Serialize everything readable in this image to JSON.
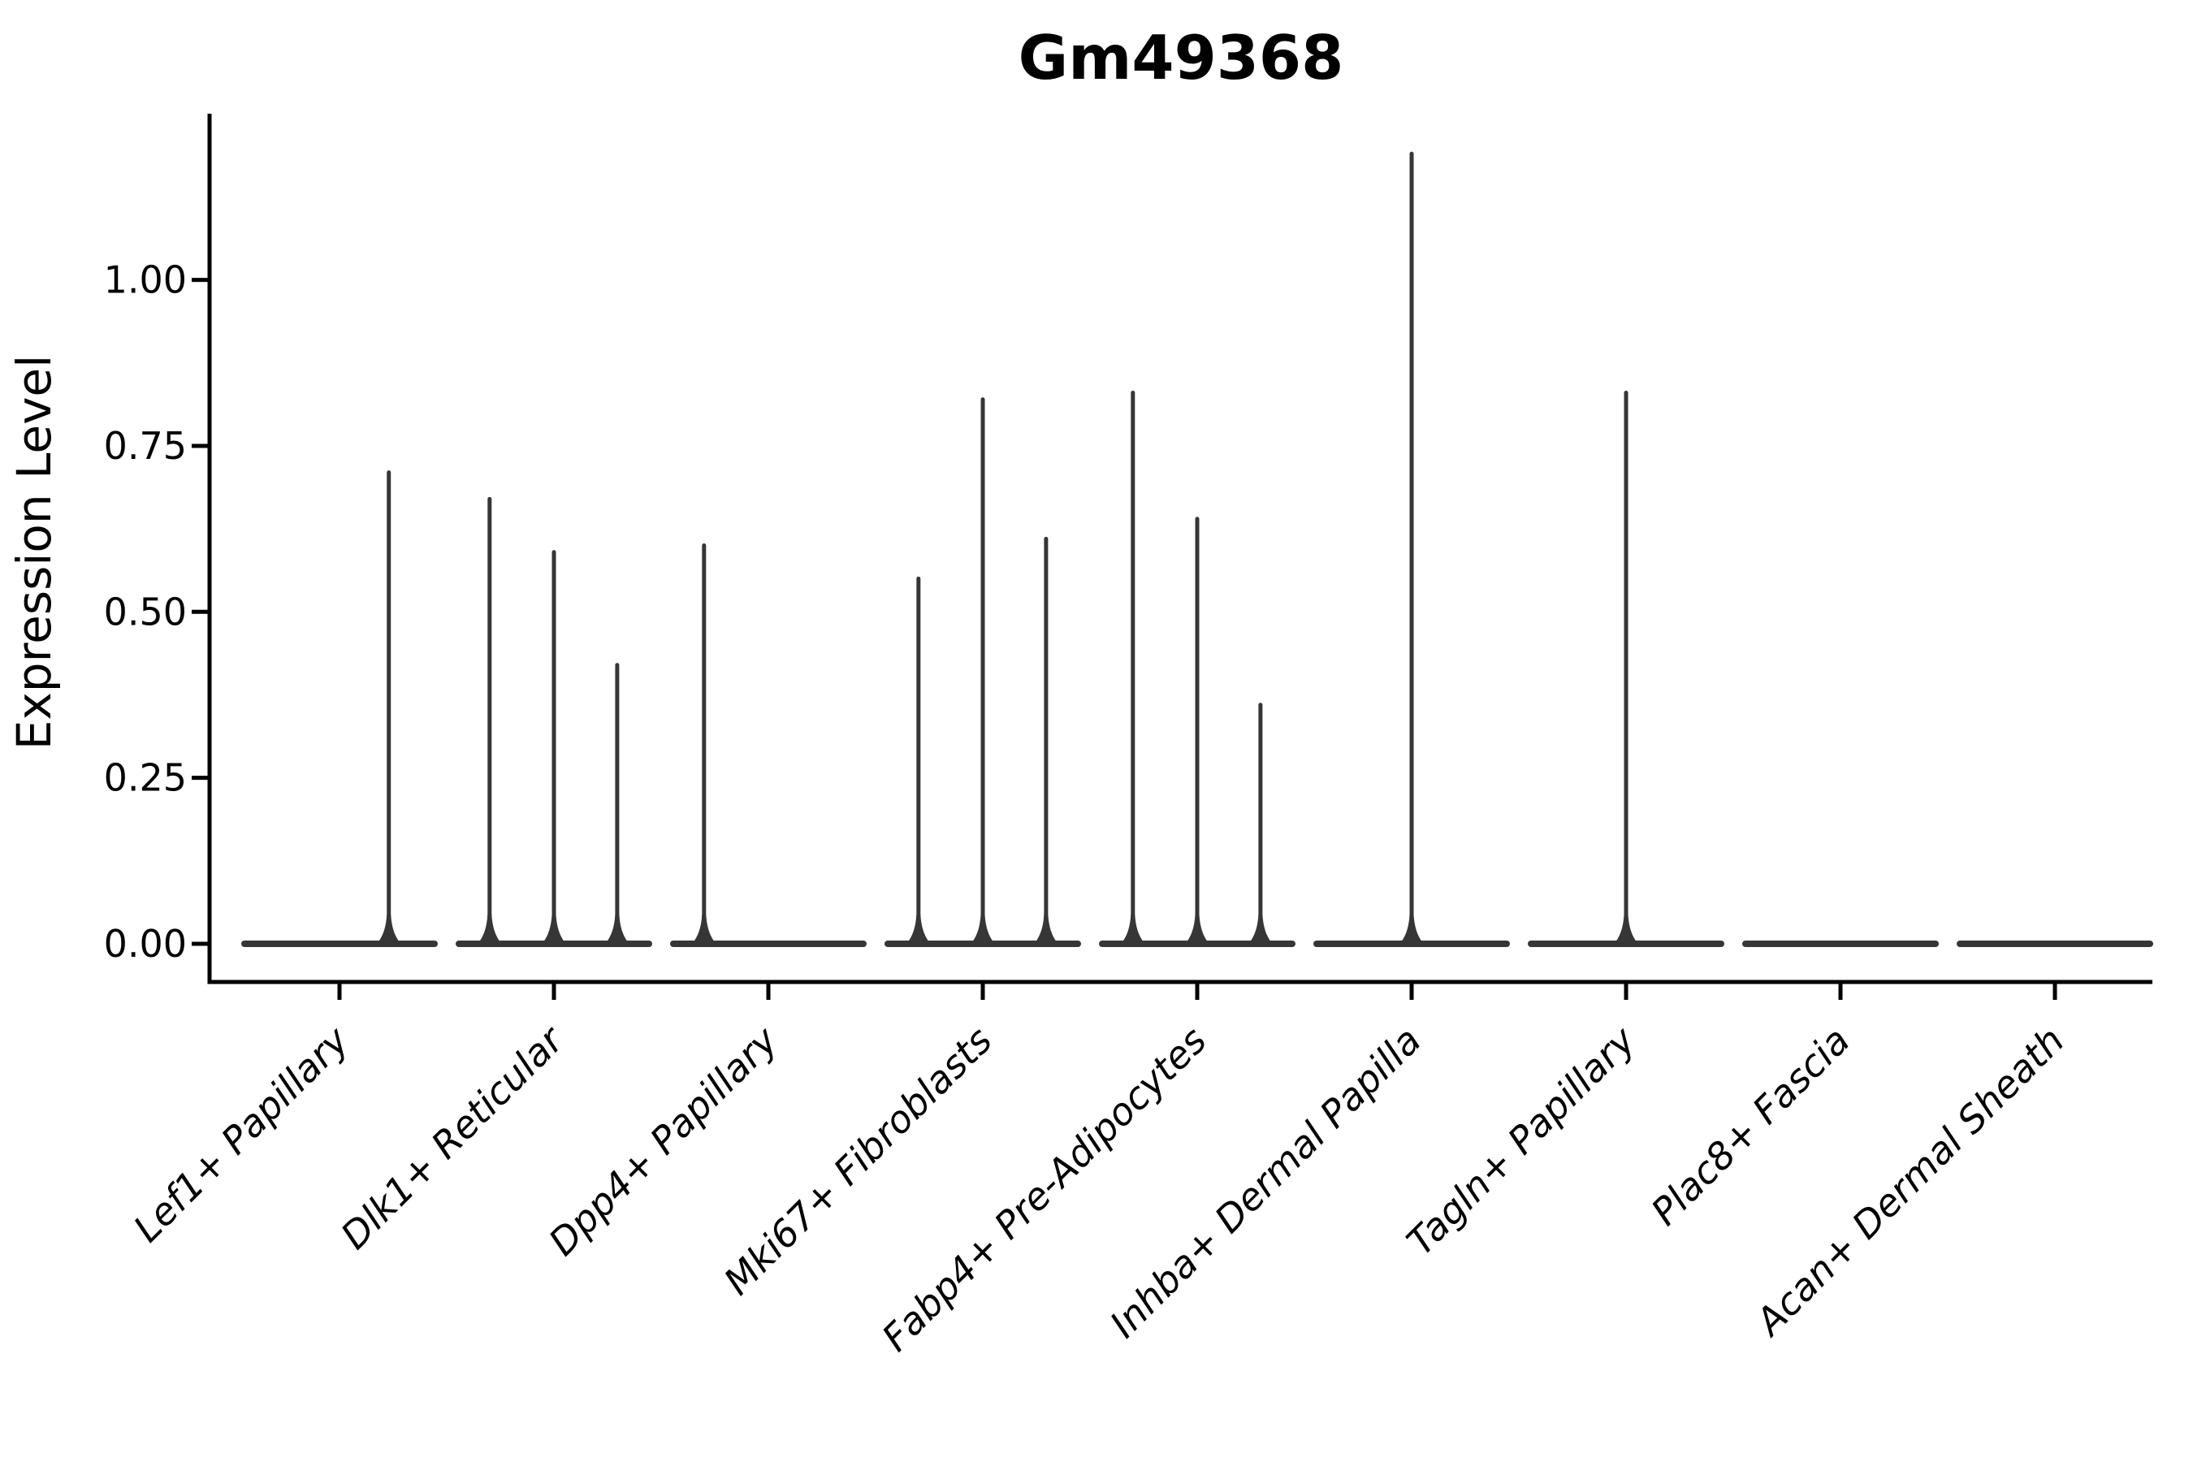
{
  "title": "Gm49368",
  "colors": {
    "violin": "#363636",
    "axis": "#000000",
    "text": "#000000",
    "background": "#ffffff"
  },
  "chart_data": {
    "type": "violin",
    "title": "Gm49368",
    "xlabel": "",
    "ylabel": "Expression Level",
    "ylim": [
      0,
      1.25
    ],
    "grid": false,
    "legend": "none",
    "yticks": [
      {
        "value": 0.0,
        "label": "0.00"
      },
      {
        "value": 0.25,
        "label": "0.25"
      },
      {
        "value": 0.5,
        "label": "0.50"
      },
      {
        "value": 0.75,
        "label": "0.75"
      },
      {
        "value": 1.0,
        "label": "1.00"
      }
    ],
    "categories": [
      "Lef1+ Papillary",
      "Dlk1+ Reticular",
      "Dpp4+ Papillary",
      "Mki67+ Fibroblasts",
      "Fabp4+ Pre-Adipocytes",
      "Inhba+ Dermal Papilla",
      "Tagln+ Papillary",
      "Plac8+ Fascia",
      "Acan+ Dermal Sheath"
    ],
    "violins": [
      {
        "category": "Lef1+ Papillary",
        "baseline": 0.0,
        "spikes": [
          {
            "pos": 0.23,
            "max": 0.71
          }
        ]
      },
      {
        "category": "Dlk1+ Reticular",
        "baseline": 0.0,
        "spikes": [
          {
            "pos": -0.3,
            "max": 0.67
          },
          {
            "pos": 0.0,
            "max": 0.59
          },
          {
            "pos": 0.295,
            "max": 0.42
          }
        ]
      },
      {
        "category": "Dpp4+ Papillary",
        "baseline": 0.0,
        "spikes": [
          {
            "pos": -0.3,
            "max": 0.6
          }
        ]
      },
      {
        "category": "Mki67+ Fibroblasts",
        "baseline": 0.0,
        "spikes": [
          {
            "pos": -0.3,
            "max": 0.55
          },
          {
            "pos": 0.0,
            "max": 0.82
          },
          {
            "pos": 0.295,
            "max": 0.61
          }
        ]
      },
      {
        "category": "Fabp4+ Pre-Adipocytes",
        "baseline": 0.0,
        "spikes": [
          {
            "pos": -0.3,
            "max": 0.83
          },
          {
            "pos": 0.0,
            "max": 0.64
          },
          {
            "pos": 0.295,
            "max": 0.36
          }
        ]
      },
      {
        "category": "Inhba+ Dermal Papilla",
        "baseline": 0.0,
        "spikes": [
          {
            "pos": 0.0,
            "max": 1.19
          }
        ]
      },
      {
        "category": "Tagln+ Papillary",
        "baseline": 0.0,
        "spikes": [
          {
            "pos": 0.0,
            "max": 0.83
          }
        ]
      },
      {
        "category": "Plac8+ Fascia",
        "baseline": 0.0,
        "spikes": []
      },
      {
        "category": "Acan+ Dermal Sheath",
        "baseline": 0.0,
        "spikes": []
      }
    ]
  }
}
